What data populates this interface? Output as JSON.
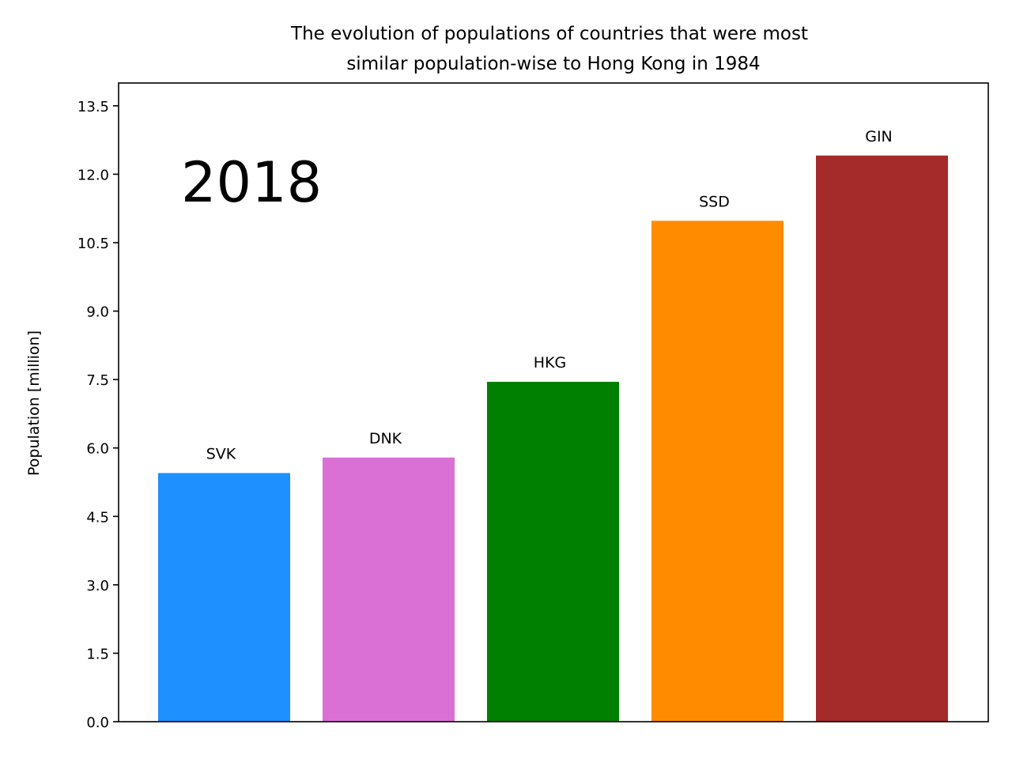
{
  "chart_data": {
    "type": "bar",
    "title": "The evolution of populations of countries that were most similar population-wise to Hong Kong in 1984",
    "title_lines": [
      "The evolution of populations of countries that were most",
      "similar population-wise to Hong Kong in 1984"
    ],
    "xlabel": "",
    "ylabel": "Population [million]",
    "year": "2018",
    "categories": [
      "SVK",
      "DNK",
      "HKG",
      "SSD",
      "GIN"
    ],
    "values": [
      5.45,
      5.79,
      7.45,
      10.98,
      12.41
    ],
    "colors": [
      "#1e90ff",
      "#da70d6",
      "#008000",
      "#ff8c00",
      "#a52a2a"
    ],
    "ylim": [
      0,
      14
    ],
    "yticks": [
      0.0,
      1.5,
      3.0,
      4.5,
      6.0,
      7.5,
      9.0,
      10.5,
      12.0,
      13.5
    ],
    "ytick_labels": [
      "0.0",
      "1.5",
      "3.0",
      "4.5",
      "6.0",
      "7.5",
      "9.0",
      "10.5",
      "12.0",
      "13.5"
    ],
    "grid": false,
    "legend": "none"
  }
}
